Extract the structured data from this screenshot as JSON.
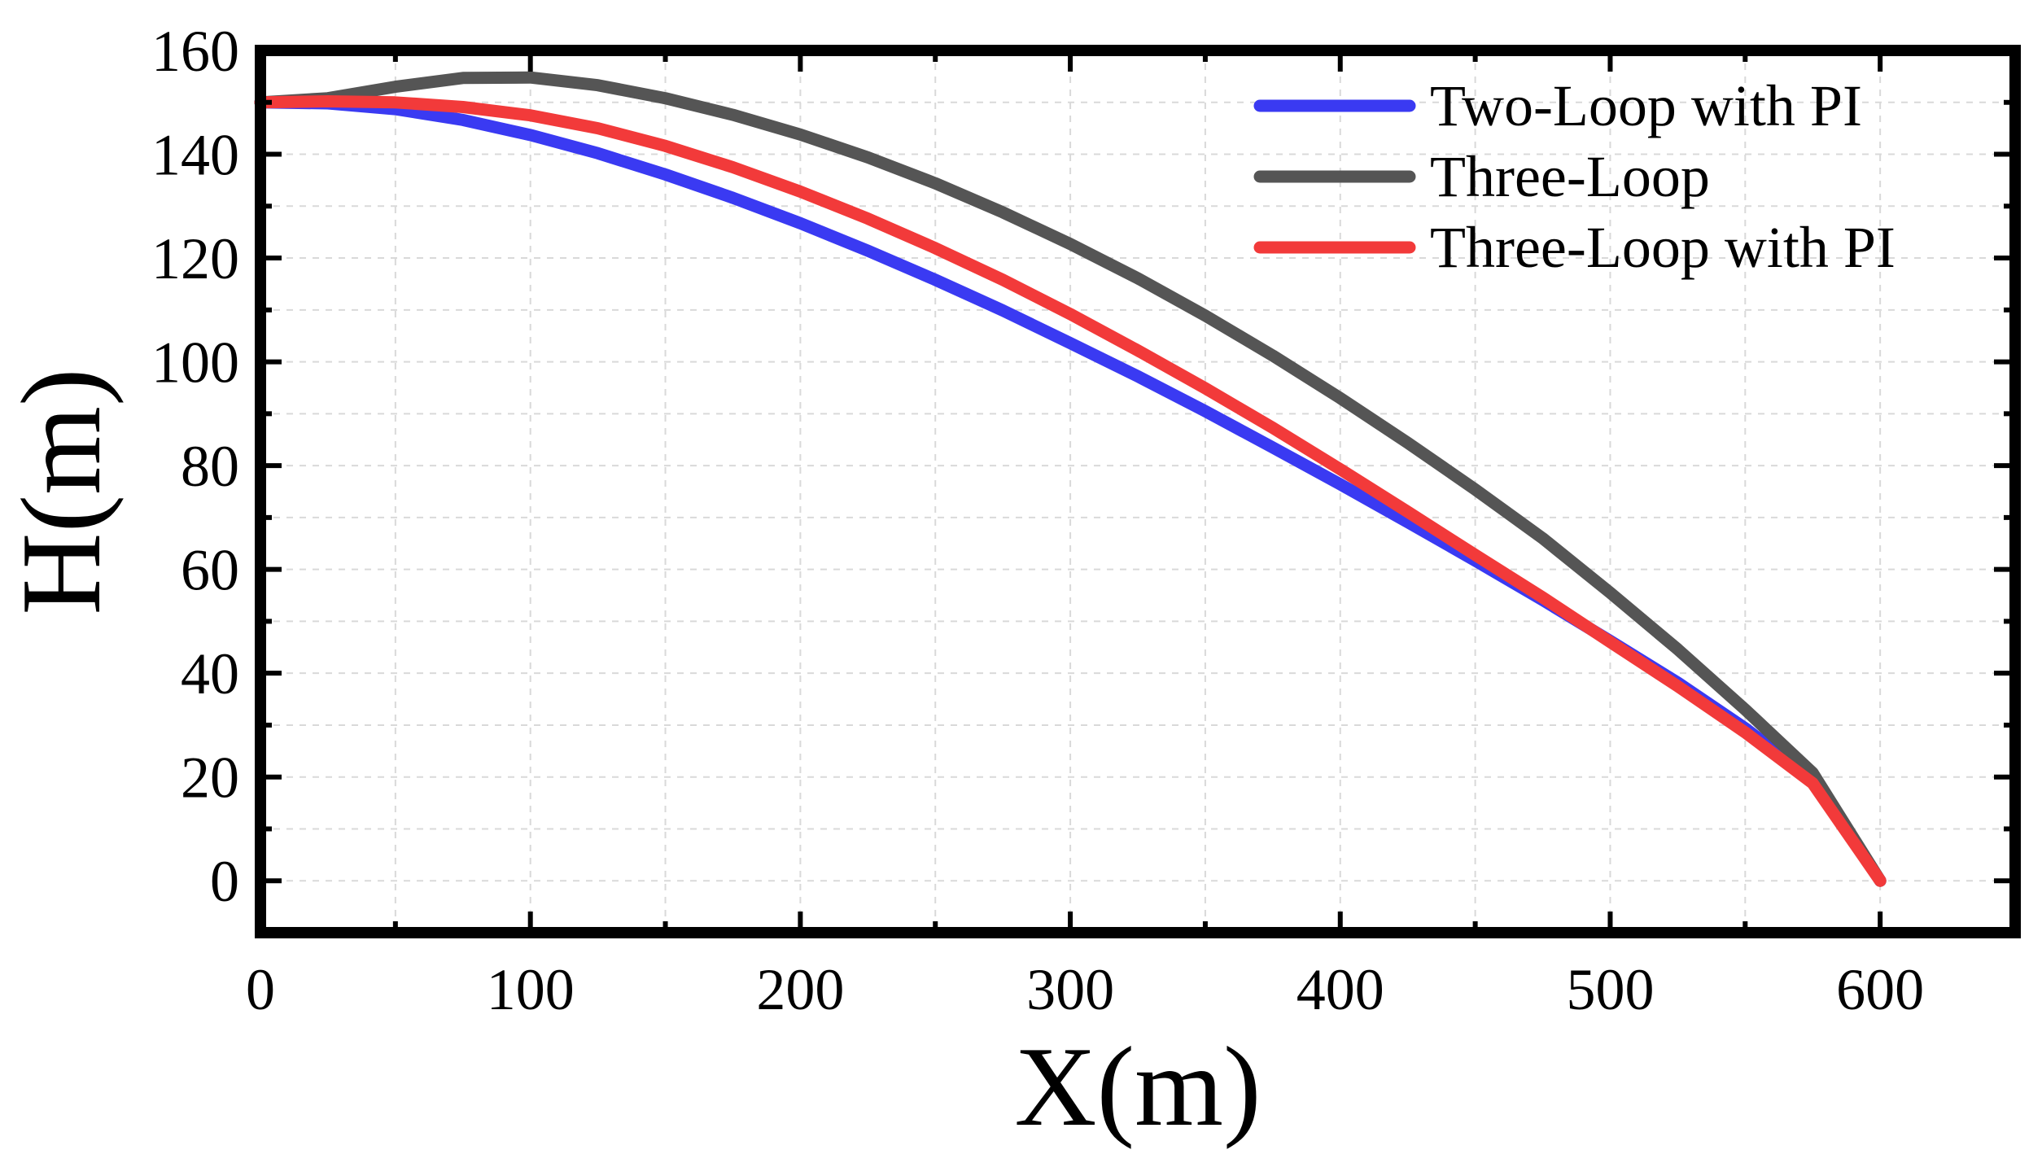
{
  "chart_data": {
    "type": "line",
    "xlabel": "X(m)",
    "ylabel": "H(m)",
    "xlim": [
      0,
      650
    ],
    "ylim": [
      -10,
      160
    ],
    "xticks": [
      0,
      100,
      200,
      300,
      400,
      500,
      600
    ],
    "yticks": [
      0,
      20,
      40,
      60,
      80,
      100,
      120,
      140,
      160
    ],
    "grid": true,
    "legend_position": "top-right",
    "series": [
      {
        "name": "Two-Loop with PI",
        "color": "#3a3af2",
        "x": [
          0,
          25,
          50,
          75,
          100,
          125,
          150,
          175,
          200,
          225,
          250,
          275,
          300,
          325,
          350,
          375,
          400,
          425,
          450,
          475,
          500,
          525,
          550,
          575,
          600
        ],
        "y": [
          150,
          149.8,
          148.7,
          146.6,
          143.7,
          140.2,
          136.1,
          131.6,
          126.7,
          121.4,
          115.8,
          109.9,
          103.6,
          97.2,
          90.5,
          83.5,
          76.4,
          69.1,
          61.7,
          54.1,
          46.2,
          38.2,
          29.4,
          19.5,
          0
        ]
      },
      {
        "name": "Three-Loop",
        "color": "#555555",
        "x": [
          0,
          25,
          50,
          75,
          100,
          125,
          150,
          175,
          200,
          225,
          250,
          275,
          300,
          325,
          350,
          375,
          400,
          425,
          450,
          475,
          500,
          525,
          550,
          575,
          600
        ],
        "y": [
          150,
          150.8,
          153,
          154.7,
          154.8,
          153.3,
          150.8,
          147.6,
          143.8,
          139.4,
          134.4,
          128.8,
          122.7,
          116.1,
          108.9,
          101.2,
          93,
          84.4,
          75.4,
          66,
          55.5,
          44.6,
          33,
          20.8,
          0
        ]
      },
      {
        "name": "Three-Loop with PI",
        "color": "#f23a3a",
        "x": [
          0,
          25,
          50,
          75,
          100,
          125,
          150,
          175,
          200,
          225,
          250,
          275,
          300,
          325,
          350,
          375,
          400,
          425,
          450,
          475,
          500,
          525,
          550,
          575,
          600
        ],
        "y": [
          150,
          150.2,
          150,
          149.1,
          147.5,
          145,
          141.6,
          137.5,
          132.8,
          127.6,
          121.9,
          115.8,
          109.2,
          102.2,
          94.9,
          87.3,
          79.3,
          71.1,
          62.8,
          54.6,
          46,
          37.5,
          28.6,
          18.8,
          0
        ]
      }
    ]
  }
}
